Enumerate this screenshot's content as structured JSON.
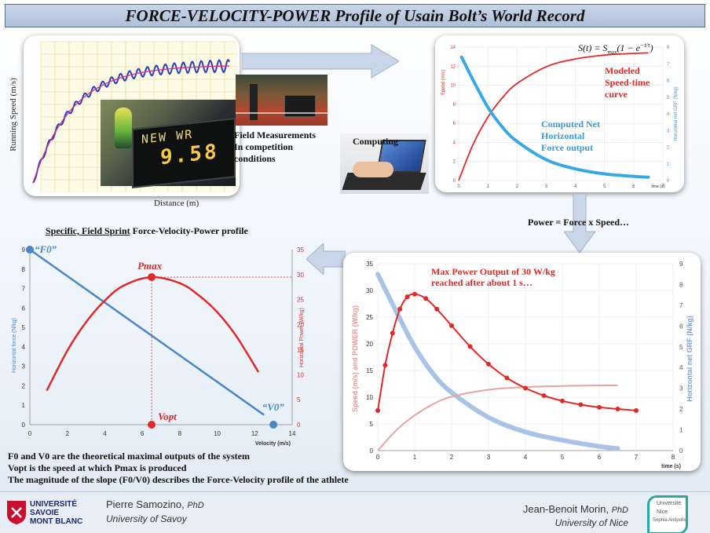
{
  "title": "FORCE-VELOCITY-POWER Profile of Usain Bolt’s World Record",
  "field_panel": {
    "ylabel": "Running Speed (m/s)",
    "xlabel": "Distance (m)",
    "scoreboard_line1": "NEW WR",
    "scoreboard_line2": "9.58",
    "caption": [
      "Field Measurements",
      "In competition",
      "conditions"
    ]
  },
  "computing_label": "Computing",
  "top_right_chart": {
    "formula": "S(t) = S_max(1 − e^(−t/τ))",
    "modeled_label": [
      "Modeled",
      "Speed-time",
      "curve"
    ],
    "force_label": [
      "Computed Net",
      "Horizontal",
      "Force output"
    ],
    "ylabel_left": "Speed (m/s)",
    "ylabel_right": "Horizontal net GRF (N/kg)",
    "xlabel": "time (s)",
    "x_ticks": [
      "0",
      "1",
      "2",
      "3",
      "4",
      "5",
      "6",
      "7"
    ],
    "y_left_ticks": [
      "0",
      "2",
      "4",
      "6",
      "8",
      "10",
      "12",
      "14"
    ],
    "y_right_ticks": [
      "0",
      "1",
      "2",
      "3",
      "4",
      "5",
      "6",
      "7",
      "8"
    ]
  },
  "power_formula": "Power = Force x Speed…",
  "fvp_chart": {
    "heading_underlined": "Specific, Field Sprint",
    "heading_rest": " Force-Velocity-Power profile",
    "ylabel_left": "Horizontal force (N/kg)",
    "ylabel_right": "Horizontal Power (W/kg)",
    "xlabel": "Velocity (m/s)",
    "x_ticks": [
      "0",
      "2",
      "4",
      "6",
      "8",
      "10",
      "12",
      "14"
    ],
    "y_left_ticks": [
      "0",
      "1",
      "2",
      "3",
      "4",
      "5",
      "6",
      "7",
      "8",
      "9"
    ],
    "y_right_ticks": [
      "0",
      "5",
      "10",
      "15",
      "20",
      "25",
      "30",
      "35"
    ],
    "f0_label": "“F0”",
    "v0_label": "“V0”",
    "pmax_label": "Pmax",
    "vopt_label": "Vopt"
  },
  "power_chart": {
    "annotation": [
      "Max Power Output of 30 W/kg",
      "reached after about 1 s…"
    ],
    "ylabel_left": "Speed (m/s) and POWER (W/kg)",
    "ylabel_right": "Horizontal net GRF (N/kg)",
    "xlabel": "time (s)",
    "x_ticks": [
      "0",
      "1",
      "2",
      "3",
      "4",
      "5",
      "6",
      "7",
      "8"
    ],
    "y_left_ticks": [
      "0",
      "5",
      "10",
      "15",
      "20",
      "25",
      "30",
      "35"
    ],
    "y_right_ticks": [
      "0",
      "1",
      "2",
      "3",
      "4",
      "5",
      "6",
      "7",
      "8",
      "9"
    ]
  },
  "bottom_notes": [
    "F0 and V0 are the theoretical maximal outputs of the system",
    "Vopt is the speed at which Pmax is produced",
    "The magnitude of the slope (F0/V0) describes the Force-Velocity profile of the athlete"
  ],
  "footer": {
    "left_logo": [
      "UNIVERSITÉ",
      "SAVOIE",
      "MONT BLANC"
    ],
    "left_name": "Pierre Samozino, ",
    "left_degree": "PhD",
    "left_affil": "University of Savoy",
    "right_name": "Jean-Benoit Morin, ",
    "right_degree": "PhD",
    "right_affil": "University of Nice",
    "right_logo": [
      "Université",
      "Nice",
      "Sophia Antipolis"
    ]
  },
  "chart_data": [
    {
      "type": "line",
      "title": "",
      "xlabel": "time (s)",
      "ylabel": "Speed (m/s)",
      "xlim": [
        0,
        7
      ],
      "ylim": [
        0,
        14
      ],
      "series": [
        {
          "name": "Modeled Speed-time curve",
          "color": "#e02a2a",
          "x": [
            0,
            0.5,
            1,
            1.5,
            2,
            3,
            4,
            5,
            6,
            6.5
          ],
          "y": [
            0,
            3.84,
            6.64,
            8.69,
            10.18,
            11.93,
            12.76,
            13.16,
            13.34,
            13.39
          ]
        },
        {
          "name": "Computed Net Horizontal Force output",
          "color": "#3aa8e0",
          "axis": "right",
          "x": [
            0.1,
            0.5,
            1,
            1.5,
            2,
            3,
            4,
            5,
            6,
            6.5
          ],
          "y": [
            7.4,
            6.0,
            4.4,
            3.2,
            2.35,
            1.25,
            0.7,
            0.4,
            0.25,
            0.2
          ]
        }
      ]
    },
    {
      "type": "line",
      "title": "",
      "xlabel": "Velocity (m/s)",
      "ylabel": "Horizontal force (N/kg)",
      "xlim": [
        0,
        14
      ],
      "ylim": [
        0,
        9
      ],
      "series": [
        {
          "name": "Horizontal force",
          "color": "#4a86c5",
          "x": [
            0,
            12.5
          ],
          "y": [
            9,
            0.5
          ]
        },
        {
          "name": "Horizontal Power (W/kg)",
          "color": "#e02a2a",
          "axis": "right",
          "x": [
            0.9,
            2,
            3,
            4,
            5,
            6.5,
            8,
            9,
            10,
            11,
            12.2
          ],
          "y": [
            6.8,
            14.8,
            20.5,
            24.8,
            27.8,
            29.5,
            28.3,
            25.9,
            22.5,
            17.8,
            10.5
          ]
        }
      ]
    },
    {
      "type": "line",
      "title": "",
      "xlabel": "time (s)",
      "ylabel": "Speed (m/s) and POWER (W/kg)",
      "xlim": [
        0,
        8
      ],
      "ylim": [
        0,
        35
      ],
      "series": [
        {
          "name": "POWER",
          "color": "#e02a2a",
          "x": [
            0,
            0.2,
            0.4,
            0.6,
            0.8,
            1.0,
            1.3,
            1.6,
            2,
            2.5,
            3,
            3.5,
            4,
            4.5,
            5,
            5.5,
            6,
            6.5,
            7
          ],
          "y": [
            7.5,
            16,
            22,
            26.5,
            28.8,
            29.3,
            28.5,
            26.5,
            23.4,
            19.5,
            16.2,
            13.6,
            11.7,
            10.3,
            9.3,
            8.6,
            8.1,
            7.8,
            7.5
          ]
        },
        {
          "name": "Speed",
          "color": "#e8a4a2",
          "x": [
            0,
            0.5,
            1,
            1.5,
            2,
            3,
            4,
            5,
            6,
            6.5
          ],
          "y": [
            0,
            3.8,
            6.6,
            8.7,
            10.1,
            11.4,
            11.9,
            12.1,
            12.2,
            12.2
          ]
        },
        {
          "name": "Horizontal net GRF (N/kg)",
          "color": "#a9c3e6",
          "axis": "right",
          "x": [
            0,
            0.5,
            1,
            1.5,
            2,
            3,
            4,
            5,
            6,
            6.5
          ],
          "y": [
            8.5,
            6.7,
            5.0,
            3.7,
            2.8,
            1.6,
            0.9,
            0.5,
            0.2,
            0.1
          ]
        }
      ]
    }
  ]
}
